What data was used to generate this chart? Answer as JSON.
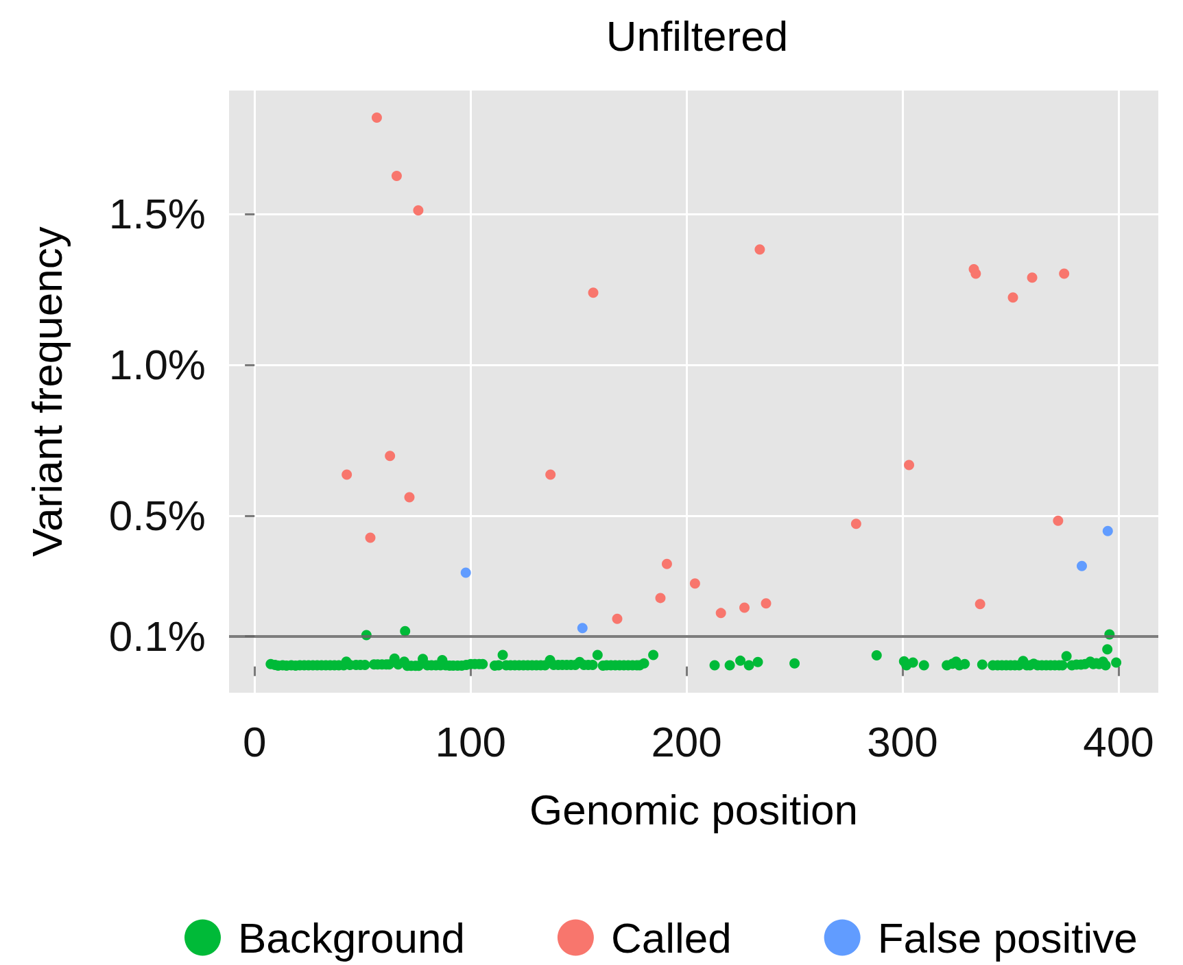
{
  "chart_data": {
    "type": "scatter",
    "title": "Unfiltered",
    "xlabel": "Genomic position",
    "ylabel": "Variant frequency",
    "xlim": [
      -11.8,
      418.4
    ],
    "xticks": [
      0,
      100,
      200,
      300,
      400
    ],
    "ylim": [
      -0.087,
      1.909
    ],
    "yticks": [
      {
        "value": 0.1,
        "label": "0.1%"
      },
      {
        "value": 0.5,
        "label": "0.5%"
      },
      {
        "value": 1.0,
        "label": "1.0%"
      },
      {
        "value": 1.5,
        "label": "1.5%"
      }
    ],
    "grid": true,
    "legend": "bottom",
    "marker": "circle",
    "ref_lines": [
      {
        "axis": "y",
        "value": 0.1,
        "color": "#666666"
      }
    ],
    "series": [
      {
        "name": "Background",
        "color": "#00ba38",
        "x": [
          7.5,
          9.5,
          10.9,
          13,
          14.8,
          17,
          19,
          21,
          23,
          25,
          27,
          29,
          31,
          33,
          35,
          37,
          39,
          41.3,
          42.5,
          44.2,
          47,
          49,
          51.1,
          51.8,
          55.3,
          57,
          59,
          61,
          62.3,
          64.8,
          66.5,
          69.3,
          69.7,
          70.7,
          72.5,
          74.5,
          76,
          77.9,
          80,
          81.9,
          84,
          86.1,
          86.9,
          88.5,
          90.3,
          92,
          94,
          95.9,
          98,
          100.1,
          102,
          104,
          105.6,
          111.2,
          113,
          114.9,
          116.5,
          118.5,
          120.5,
          122.5,
          124.5,
          126.5,
          128.5,
          130.5,
          132.5,
          134.5,
          136.8,
          138.5,
          140.6,
          142.5,
          144.5,
          146.5,
          148.5,
          150.5,
          152.5,
          154.5,
          156.5,
          158.8,
          161.3,
          163,
          165,
          167,
          169,
          171,
          173,
          175,
          177,
          178.3,
          180.3,
          184.6,
          213,
          220,
          224.9,
          228.9,
          233,
          250,
          288,
          300.7,
          301.8,
          304.8,
          309.9,
          320.5,
          323.1,
          324.8,
          326.3,
          328.8,
          336.9,
          341.8,
          344,
          346,
          348,
          350,
          352,
          354,
          355.8,
          357.5,
          359,
          360.7,
          362.5,
          364.5,
          366.5,
          368.5,
          370.5,
          372.5,
          374,
          375.9,
          378.4,
          380.5,
          382.6,
          384.5,
          386.9,
          388.3,
          389.7,
          391,
          392.8,
          394,
          394.8,
          395.8,
          398.9
        ],
        "values": [
          0.008,
          0.005,
          0.003,
          0.004,
          0.003,
          0.004,
          0.003,
          0.004,
          0.004,
          0.004,
          0.004,
          0.004,
          0.004,
          0.004,
          0.004,
          0.004,
          0.004,
          0.004,
          0.016,
          0.005,
          0.005,
          0.005,
          0.005,
          0.104,
          0.007,
          0.007,
          0.007,
          0.007,
          0.007,
          0.026,
          0.007,
          0.016,
          0.117,
          0.002,
          0.002,
          0.002,
          0.002,
          0.025,
          0.004,
          0.004,
          0.004,
          0.004,
          0.021,
          0.004,
          0.003,
          0.003,
          0.003,
          0.003,
          0.005,
          0.008,
          0.008,
          0.008,
          0.008,
          0.003,
          0.004,
          0.038,
          0.004,
          0.004,
          0.004,
          0.004,
          0.004,
          0.004,
          0.004,
          0.004,
          0.004,
          0.004,
          0.021,
          0.005,
          0.005,
          0.005,
          0.005,
          0.005,
          0.005,
          0.015,
          0.005,
          0.005,
          0.005,
          0.038,
          0.003,
          0.004,
          0.004,
          0.004,
          0.004,
          0.004,
          0.004,
          0.004,
          0.004,
          0.004,
          0.01,
          0.038,
          0.004,
          0.004,
          0.019,
          0.004,
          0.015,
          0.01,
          0.037,
          0.017,
          0.004,
          0.013,
          0.004,
          0.004,
          0.009,
          0.016,
          0.004,
          0.008,
          0.006,
          0.004,
          0.004,
          0.004,
          0.004,
          0.004,
          0.004,
          0.004,
          0.018,
          0.004,
          0.004,
          0.009,
          0.004,
          0.004,
          0.004,
          0.004,
          0.004,
          0.004,
          0.004,
          0.034,
          0.004,
          0.006,
          0.006,
          0.008,
          0.016,
          0.008,
          0.011,
          0.008,
          0.016,
          0.004,
          0.057,
          0.106,
          0.013
        ]
      },
      {
        "name": "Called",
        "color": "#f8766d",
        "x": [
          42.7,
          53.6,
          56.6,
          62.7,
          65.8,
          71.7,
          75.8,
          137,
          156.8,
          167.9,
          187.9,
          190.9,
          203.9,
          215.9,
          226.8,
          233.9,
          236.8,
          278.5,
          303,
          333,
          333.9,
          335.9,
          351.1,
          360,
          372,
          374.8
        ],
        "values": [
          0.636,
          0.427,
          1.819,
          0.698,
          1.626,
          0.561,
          1.512,
          0.636,
          1.239,
          0.158,
          0.227,
          0.34,
          0.275,
          0.177,
          0.195,
          1.382,
          0.209,
          0.473,
          0.668,
          1.317,
          1.302,
          0.207,
          1.223,
          1.289,
          0.483,
          1.302
        ]
      },
      {
        "name": "False positive",
        "color": "#619cff",
        "x": [
          97.8,
          151.8,
          383,
          395
        ],
        "values": [
          0.311,
          0.127,
          0.333,
          0.449
        ]
      }
    ]
  }
}
